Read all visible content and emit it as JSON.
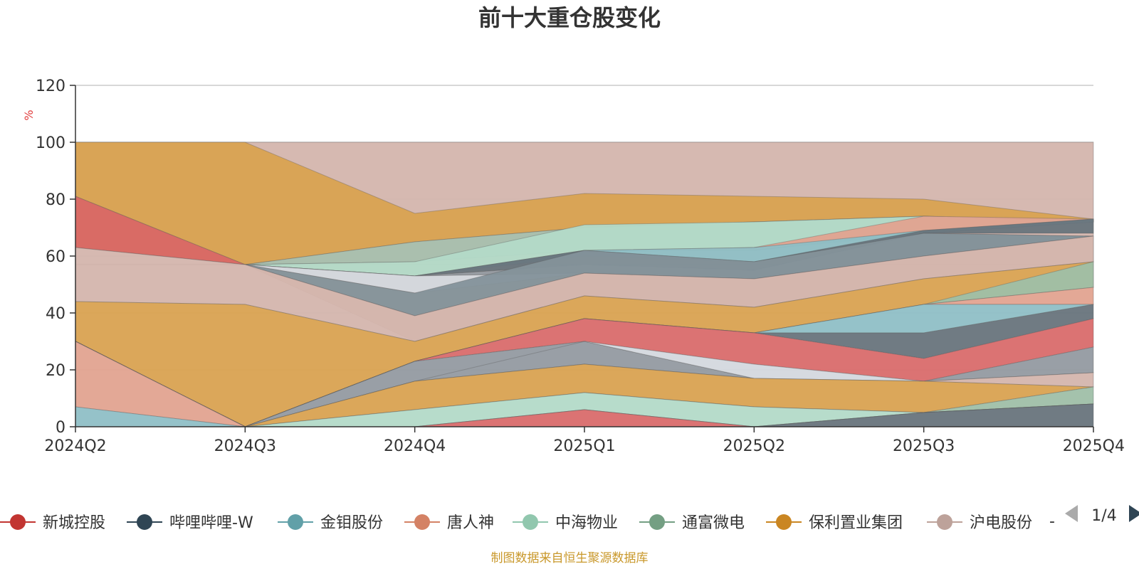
{
  "chart_data": {
    "type": "area",
    "title": "前十大重仓股变化",
    "ylabel": "%",
    "ylim": [
      0,
      120
    ],
    "yticks": [
      0,
      20,
      40,
      60,
      80,
      100,
      120
    ],
    "grid": true,
    "categories": [
      "2024Q2",
      "2024Q3",
      "2024Q4",
      "2025Q1",
      "2025Q2",
      "2025Q3",
      "2025Q4"
    ],
    "bands": [
      {
        "name": "",
        "color": "#d4b5ad",
        "lower": [
          63,
          57,
          30,
          46,
          42,
          52,
          58
        ],
        "upper": [
          100,
          100,
          100,
          100,
          100,
          100,
          100
        ]
      },
      {
        "name": "",
        "color": "#d9a251",
        "lower": [
          81,
          57,
          65,
          70,
          72,
          74,
          72
        ],
        "upper": [
          100,
          100,
          75,
          82,
          81,
          80,
          73
        ]
      },
      {
        "name": "",
        "color": "#d96661",
        "lower": [
          63,
          57,
          57,
          57,
          57,
          57,
          57
        ],
        "upper": [
          81,
          57,
          57,
          57,
          57,
          57,
          57
        ]
      },
      {
        "name": "",
        "color": "#a8bfae",
        "lower": [
          57,
          57,
          58,
          62,
          62,
          68,
          72
        ],
        "upper": [
          57,
          57,
          65,
          70,
          72,
          74,
          72
        ]
      },
      {
        "name": "",
        "color": "#b3dac8",
        "lower": [
          57,
          57,
          53,
          61,
          63,
          68,
          72
        ],
        "upper": [
          57,
          57,
          58,
          71,
          72,
          74,
          72
        ]
      },
      {
        "name": "",
        "color": "#e2a390",
        "lower": [
          57,
          57,
          53,
          62,
          62,
          69,
          72
        ],
        "upper": [
          57,
          57,
          53,
          62,
          63,
          74,
          73
        ]
      },
      {
        "name": "",
        "color": "#8fbfc6",
        "lower": [
          57,
          57,
          53,
          60,
          58,
          68,
          72
        ],
        "upper": [
          57,
          57,
          53,
          62,
          63,
          69,
          73
        ]
      },
      {
        "name": "",
        "color": "#68747c",
        "lower": [
          57,
          57,
          53,
          57,
          55,
          68,
          68
        ],
        "upper": [
          57,
          57,
          53,
          62,
          58,
          69,
          73
        ]
      },
      {
        "name": "",
        "color": "#939aa1",
        "lower": [
          57,
          57,
          53,
          54,
          52,
          60,
          67
        ],
        "upper": [
          57,
          57,
          53,
          57,
          55,
          68,
          67
        ]
      },
      {
        "name": "",
        "color": "#d4d8de",
        "lower": [
          57,
          57,
          47,
          54,
          52,
          60,
          67
        ],
        "upper": [
          57,
          57,
          53,
          54,
          52,
          60,
          67
        ]
      },
      {
        "name": "",
        "color": "#84929a",
        "lower": [
          57,
          57,
          39,
          54,
          52,
          60,
          67
        ],
        "upper": [
          57,
          57,
          47,
          62,
          58,
          68,
          67
        ]
      },
      {
        "name": "",
        "color": "#d4b5ad",
        "lower": [
          44,
          43,
          30,
          46,
          42,
          52,
          58
        ],
        "upper": [
          63,
          57,
          39,
          54,
          52,
          60,
          67
        ]
      },
      {
        "name": "",
        "color": "#d9a251",
        "lower": [
          30,
          0,
          23,
          38,
          33,
          43,
          49
        ],
        "upper": [
          44,
          43,
          30,
          46,
          42,
          52,
          58
        ]
      },
      {
        "name": "",
        "color": "#9fbfa8",
        "lower": [
          30,
          0,
          23,
          38,
          33,
          43,
          49
        ],
        "upper": [
          30,
          0,
          23,
          38,
          33,
          43,
          58
        ]
      },
      {
        "name": "",
        "color": "#e2a390",
        "lower": [
          30,
          0,
          23,
          38,
          33,
          43,
          43
        ],
        "upper": [
          30,
          0,
          23,
          38,
          33,
          43,
          49
        ]
      },
      {
        "name": "",
        "color": "#8fbfc6",
        "lower": [
          30,
          0,
          23,
          38,
          33,
          33,
          43
        ],
        "upper": [
          30,
          0,
          23,
          38,
          33,
          43,
          43
        ]
      },
      {
        "name": "",
        "color": "#68747c",
        "lower": [
          30,
          0,
          23,
          38,
          33,
          24,
          38
        ],
        "upper": [
          30,
          0,
          23,
          38,
          33,
          33,
          43
        ]
      },
      {
        "name": "",
        "color": "#d96c6b",
        "lower": [
          30,
          0,
          23,
          30,
          22,
          16,
          28
        ],
        "upper": [
          30,
          0,
          23,
          38,
          33,
          24,
          38
        ]
      },
      {
        "name": "",
        "color": "#939aa1",
        "lower": [
          30,
          0,
          16,
          22,
          17,
          16,
          19
        ],
        "upper": [
          30,
          0,
          23,
          30,
          17,
          16,
          28
        ]
      },
      {
        "name": "",
        "color": "#d4d8de",
        "lower": [
          30,
          0,
          16,
          30,
          17,
          16,
          19
        ],
        "upper": [
          30,
          0,
          16,
          30,
          22,
          16,
          19
        ]
      },
      {
        "name": "",
        "color": "#d4b5ad",
        "lower": [
          30,
          0,
          16,
          22,
          17,
          16,
          14
        ],
        "upper": [
          30,
          0,
          16,
          22,
          17,
          16,
          19
        ]
      },
      {
        "name": "",
        "color": "#d9a251",
        "lower": [
          30,
          0,
          6,
          12,
          7,
          5,
          14
        ],
        "upper": [
          30,
          0,
          16,
          22,
          17,
          16,
          14
        ]
      },
      {
        "name": "",
        "color": "#9fbfa8",
        "lower": [
          30,
          0,
          6,
          12,
          7,
          5,
          8
        ],
        "upper": [
          30,
          0,
          6,
          12,
          7,
          5,
          14
        ]
      },
      {
        "name": "",
        "color": "#b3dac8",
        "lower": [
          30,
          0,
          0,
          6,
          0,
          5,
          8
        ],
        "upper": [
          30,
          0,
          6,
          12,
          7,
          5,
          8
        ]
      },
      {
        "name": "",
        "color": "#e2a390",
        "lower": [
          7,
          0,
          0,
          6,
          0,
          5,
          8
        ],
        "upper": [
          30,
          0,
          0,
          6,
          0,
          5,
          8
        ]
      },
      {
        "name": "",
        "color": "#8fbfc6",
        "lower": [
          0,
          0,
          0,
          6,
          0,
          5,
          8
        ],
        "upper": [
          7,
          0,
          0,
          6,
          0,
          5,
          8
        ]
      },
      {
        "name": "",
        "color": "#d96c6b",
        "lower": [
          0,
          0,
          0,
          0,
          0,
          5,
          8
        ],
        "upper": [
          0,
          0,
          0,
          6,
          0,
          5,
          8
        ]
      },
      {
        "name": "",
        "color": "#68747c",
        "lower": [
          0,
          0,
          0,
          0,
          0,
          0,
          0
        ],
        "upper": [
          0,
          0,
          0,
          0,
          0,
          5,
          8
        ]
      }
    ],
    "legend": {
      "placement": "bottom",
      "items": [
        {
          "name": "新城控股",
          "color": "#c23531"
        },
        {
          "name": "哔哩哔哩-W",
          "color": "#2f4554"
        },
        {
          "name": "金钼股份",
          "color": "#61a0a8"
        },
        {
          "name": "唐人神",
          "color": "#d48265"
        },
        {
          "name": "中海物业",
          "color": "#91c7ae"
        },
        {
          "name": "通富微电",
          "color": "#749f83"
        },
        {
          "name": "保利置业集团",
          "color": "#ca8622"
        },
        {
          "name": "沪电股份",
          "color": "#bda29a"
        }
      ],
      "more": "-",
      "page": "1/4"
    },
    "source": "制图数据来自恒生聚源数据库"
  },
  "colors": {
    "title": "#333333",
    "ylabel": "#e03c3c",
    "source": "#c9982b",
    "grid": "#cccccc",
    "axis": "#333333",
    "pager_prev": "#aaaaaa",
    "pager_next": "#2f4554"
  }
}
